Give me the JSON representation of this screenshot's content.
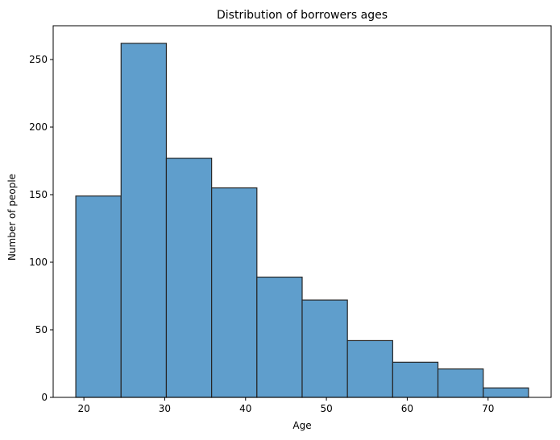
{
  "chart_data": {
    "type": "bar",
    "title": "Distribution of borrowers ages",
    "xlabel": "Age",
    "ylabel": "Number of people",
    "bin_edges": [
      19,
      24.6,
      30.2,
      35.8,
      41.4,
      47.0,
      52.6,
      58.2,
      63.8,
      69.4,
      75
    ],
    "values": [
      149,
      262,
      177,
      155,
      89,
      72,
      42,
      26,
      21,
      7
    ],
    "xlim": [
      16.2,
      77.8
    ],
    "ylim": [
      0,
      275
    ],
    "xticks": [
      20,
      30,
      40,
      50,
      60,
      70
    ],
    "yticks": [
      0,
      50,
      100,
      150,
      200,
      250
    ],
    "bar_color": "#5f9ecc",
    "bar_edge_color": "#262626",
    "grid": false,
    "legend": false
  }
}
